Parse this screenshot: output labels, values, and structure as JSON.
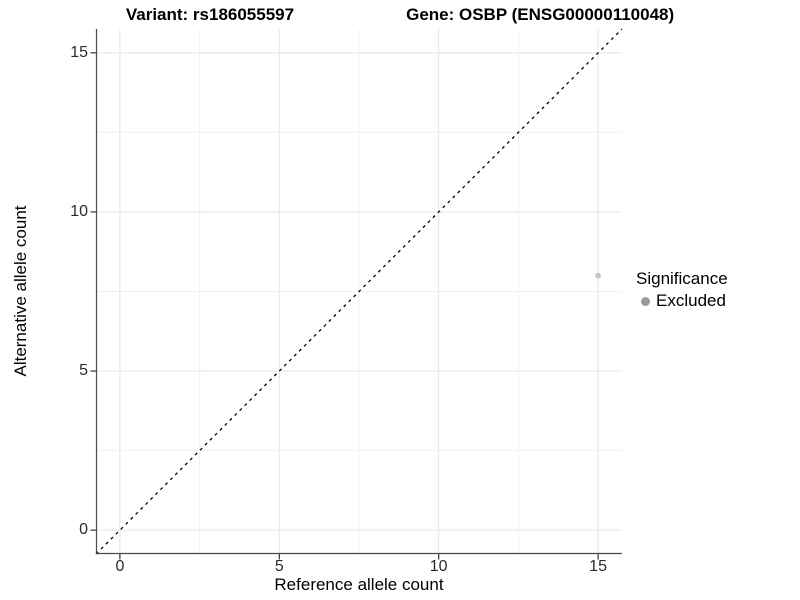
{
  "title": {
    "variant": "Variant: rs186055597",
    "gene": "Gene: OSBP (ENSG00000110048)"
  },
  "axes": {
    "x": {
      "label": "Reference allele count",
      "ticks": [
        0,
        5,
        10,
        15
      ],
      "minor_ticks": [
        2.5,
        7.5,
        12.5
      ],
      "range": [
        -0.75,
        15.75
      ]
    },
    "y": {
      "label": "Alternative allele count",
      "ticks": [
        0,
        5,
        10,
        15
      ],
      "minor_ticks": [
        2.5,
        7.5,
        12.5
      ],
      "range": [
        -0.75,
        15.75
      ]
    }
  },
  "legend": {
    "title": "Significance",
    "items": [
      {
        "label": "Excluded",
        "color": "#9a9a9a"
      }
    ]
  },
  "colors": {
    "background": "#ffffff",
    "grid_major": "#e4e4e4",
    "grid_minor": "#f1f1f1",
    "axis_line": "#4a4a4a",
    "tick_mark": "#333333",
    "reference_line": "#000000",
    "point_excluded": "#c4c4c4"
  },
  "chart_data": {
    "type": "scatter",
    "title": "Variant: rs186055597   Gene: OSBP (ENSG00000110048)",
    "xlabel": "Reference allele count",
    "ylabel": "Alternative allele count",
    "xlim": [
      -0.75,
      15.75
    ],
    "ylim": [
      -0.75,
      15.75
    ],
    "x_ticks": [
      0,
      5,
      10,
      15
    ],
    "y_ticks": [
      0,
      5,
      10,
      15
    ],
    "x_minor_ticks": [
      2.5,
      7.5,
      12.5
    ],
    "y_minor_ticks": [
      2.5,
      7.5,
      12.5
    ],
    "grid": true,
    "points": [
      {
        "x": 15,
        "y": 8,
        "series": "Excluded",
        "color": "#c4c4c4"
      }
    ],
    "reference_line": {
      "type": "identity",
      "equation": "y = x",
      "style": "dashed",
      "color": "#000000"
    },
    "legend": {
      "title": "Significance",
      "entries": [
        "Excluded"
      ],
      "position": "right-middle"
    }
  }
}
